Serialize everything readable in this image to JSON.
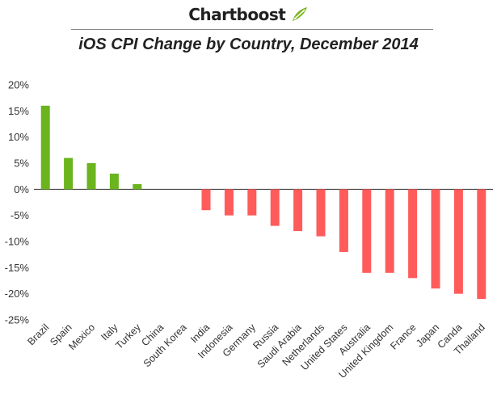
{
  "brand": {
    "name": "Chartboost",
    "logo_icon": "chartboost-leaf-icon",
    "logo_color": "#7ab51d"
  },
  "chart_data": {
    "type": "bar",
    "title": "iOS CPI Change by Country, December 2014",
    "xlabel": "",
    "ylabel": "",
    "ylim": [
      -25,
      20
    ],
    "yticks": [
      "20%",
      "15%",
      "10%",
      "5%",
      "0%",
      "-5%",
      "-10%",
      "-15%",
      "-20%",
      "-25%"
    ],
    "ytick_values": [
      20,
      15,
      10,
      5,
      0,
      -5,
      -10,
      -15,
      -20,
      -25
    ],
    "grid": false,
    "legend": "none",
    "positive_color": "#6ab41d",
    "negative_color": "#ff5b5b",
    "categories": [
      "Brazil",
      "Spain",
      "Mexico",
      "Italy",
      "Turkey",
      "China",
      "South Korea",
      "India",
      "Indonesia",
      "Germany",
      "Russia",
      "Saudi Arabia",
      "Netherlands",
      "United States",
      "Australia",
      "United Kingdom",
      "France",
      "Japan",
      "Canda",
      "Thailand"
    ],
    "values": [
      16,
      6,
      5,
      3,
      1,
      0,
      0,
      -4,
      -5,
      -5,
      -7,
      -8,
      -9,
      -12,
      -16,
      -16,
      -17,
      -19,
      -20,
      -21
    ]
  }
}
